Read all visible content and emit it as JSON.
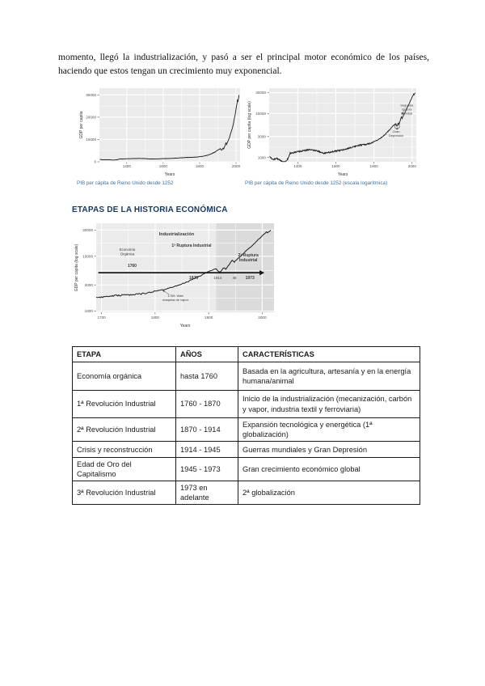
{
  "page": {
    "paragraph": "momento, llegó la industrialización, y pasó a ser el principal motor económico de los países, haciendo que estos tengan un crecimiento muy exponencial.",
    "section_heading": "ETAPAS DE LA HISTORIA ECONÓMICA"
  },
  "colors": {
    "chart_panel": "#ebebeb",
    "chart_grid": "#ffffff",
    "chart_line": "#1a1a1a",
    "shaded_band": "#dbdbdb",
    "axis_text": "#4d4d4d",
    "caption_text": "#41719c",
    "heading_text": "#17365d"
  },
  "series_library": {
    "uk_gdp_per_capita": {
      "name": "PIB per cápita de Reino Unido",
      "x": [
        1252,
        1270,
        1290,
        1310,
        1330,
        1349,
        1360,
        1380,
        1400,
        1420,
        1440,
        1460,
        1480,
        1500,
        1520,
        1540,
        1560,
        1580,
        1600,
        1620,
        1640,
        1660,
        1680,
        1700,
        1720,
        1740,
        1760,
        1780,
        1800,
        1820,
        1840,
        1860,
        1880,
        1900,
        1913,
        1918,
        1921,
        1929,
        1932,
        1938,
        1944,
        1947,
        1950,
        1960,
        1973,
        1979,
        1990,
        2000,
        2008,
        2009,
        2016
      ],
      "y": [
        1050,
        900,
        950,
        860,
        780,
        950,
        1250,
        1300,
        1350,
        1400,
        1450,
        1500,
        1470,
        1430,
        1320,
        1250,
        1300,
        1350,
        1400,
        1450,
        1520,
        1600,
        1700,
        1800,
        1900,
        1950,
        2000,
        2100,
        2300,
        2500,
        2900,
        3400,
        4200,
        5300,
        6000,
        5400,
        5100,
        6300,
        5900,
        7100,
        8600,
        7700,
        8300,
        10000,
        13500,
        14800,
        19000,
        23500,
        28000,
        26500,
        29800
      ]
    }
  },
  "chart_data": [
    {
      "id": "gdp-linear",
      "type": "line",
      "scale": "linear",
      "caption": "PIB per cápita de Reino Unido desde 1252",
      "xlabel": "Years",
      "ylabel": "GDP per capita",
      "xlim": [
        1250,
        2022
      ],
      "ylim": [
        0,
        33000
      ],
      "x_ticks": [
        1400,
        1600,
        1800,
        2000
      ],
      "y_ticks": [
        0,
        10000,
        20000,
        30000
      ],
      "series_ref": "uk_gdp_per_capita",
      "noise": 0.06
    },
    {
      "id": "gdp-log",
      "type": "line",
      "scale": "log",
      "caption": "PIB per cápita de Reino Unido desde 1252 (escala logarítmica)",
      "xlabel": "Years",
      "ylabel": "GDP per capita (log scale)",
      "xlim": [
        1250,
        2022
      ],
      "ylim": [
        800,
        38000
      ],
      "x_ticks": [
        1400,
        1600,
        1800,
        2000
      ],
      "y_ticks": [
        1000,
        3000,
        10000,
        30000
      ],
      "series_ref": "uk_gdp_per_capita",
      "noise": 0.06,
      "circles": [
        {
          "x": 1921,
          "y": 5100,
          "r": 3
        }
      ],
      "pointer_arrows": [
        {
          "x1": 1921,
          "y1": 4300,
          "x2": 1921,
          "y2": 4900,
          "w": 0.5
        },
        {
          "x1": 1958,
          "y1": 12200,
          "x2": 1947,
          "y2": 9400,
          "w": 0.5
        }
      ],
      "annotations": [
        {
          "text": "Gran\nDepresión",
          "x": 1916,
          "y": 3700,
          "size": 4,
          "anchor": "middle"
        },
        {
          "text": "Segunda\nGuerra\nMundial",
          "x": 1972,
          "y": 14500,
          "size": 4,
          "anchor": "middle"
        }
      ]
    },
    {
      "id": "etapas",
      "type": "line",
      "scale": "log",
      "caption": "",
      "xlabel": "Years",
      "ylabel": "GDP per capita (log scale)",
      "xlim": [
        1690,
        2022
      ],
      "ylim": [
        950,
        40000
      ],
      "x_ticks": [
        1700,
        1800,
        1900,
        2000
      ],
      "y_ticks": [
        1000,
        3000,
        10000,
        30000
      ],
      "series_ref": "uk_gdp_per_capita",
      "noise": 0.05,
      "band": {
        "from": 1914,
        "to": 2022
      },
      "main_arrow": {
        "x1": 1694,
        "y1": 5000,
        "x2": 2004,
        "y2": 5000,
        "w": 1.7,
        "head": true
      },
      "pointer_arrows": [
        {
          "x1": 1826,
          "y1": 2000,
          "x2": 1814,
          "y2": 2400,
          "w": 0.5
        }
      ],
      "annotations": [
        {
          "text": "Industrialización",
          "x": 1840,
          "y": 24000,
          "size": 5.5,
          "weight": "bold",
          "anchor": "middle"
        },
        {
          "text": "1ª Ruptura Industrial",
          "x": 1868,
          "y": 15000,
          "size": 5,
          "weight": "bold",
          "anchor": "middle"
        },
        {
          "text": "Economía\nOrgánica",
          "x": 1748,
          "y": 12500,
          "size": 4.3,
          "anchor": "middle"
        },
        {
          "text": "1760",
          "x": 1757,
          "y": 6400,
          "size": 5,
          "weight": "bold",
          "anchor": "middle"
        },
        {
          "text": "1870",
          "x": 1872,
          "y": 3800,
          "size": 5,
          "weight": "bold",
          "anchor": "middle"
        },
        {
          "text": "1914",
          "x": 1917,
          "y": 3800,
          "size": 4.4,
          "anchor": "middle"
        },
        {
          "text": "45",
          "x": 1948,
          "y": 3800,
          "size": 4.4,
          "anchor": "middle"
        },
        {
          "text": "1973",
          "x": 1977,
          "y": 3800,
          "size": 5,
          "weight": "bold",
          "anchor": "middle"
        },
        {
          "text": "2ª Ruptura\nIndustrial",
          "x": 1974,
          "y": 10000,
          "size": 5,
          "weight": "bold",
          "anchor": "middle"
        },
        {
          "text": "1769: Watt\nmáquina de vapor",
          "x": 1838,
          "y": 1800,
          "size": 4,
          "anchor": "middle"
        }
      ]
    }
  ],
  "table": {
    "headers": [
      "ETAPA",
      "AÑOS",
      "CARACTERÍSTICAS"
    ],
    "rows": [
      [
        "Economía orgánica",
        "hasta 1760",
        "Basada en la agricultura, artesanía y en la energía humana/animal"
      ],
      [
        "1ª Revolución Industrial",
        "1760 - 1870",
        "Inicio de la industrialización (mecanización, carbón y vapor, industria textil y ferroviaria)"
      ],
      [
        "2ª Revolución Industrial",
        "1870 - 1914",
        "Expansión tecnológica y energética (1ª globalización)"
      ],
      [
        "Crisis y reconstrucción",
        "1914 - 1945",
        "Guerras mundiales y Gran Depresión"
      ],
      [
        "Edad de Oro del Capitalismo",
        "1945 - 1973",
        "Gran crecimiento económico global"
      ],
      [
        "3ª Revolución Industrial",
        "1973 en adelante",
        "2ª globalización"
      ]
    ]
  }
}
